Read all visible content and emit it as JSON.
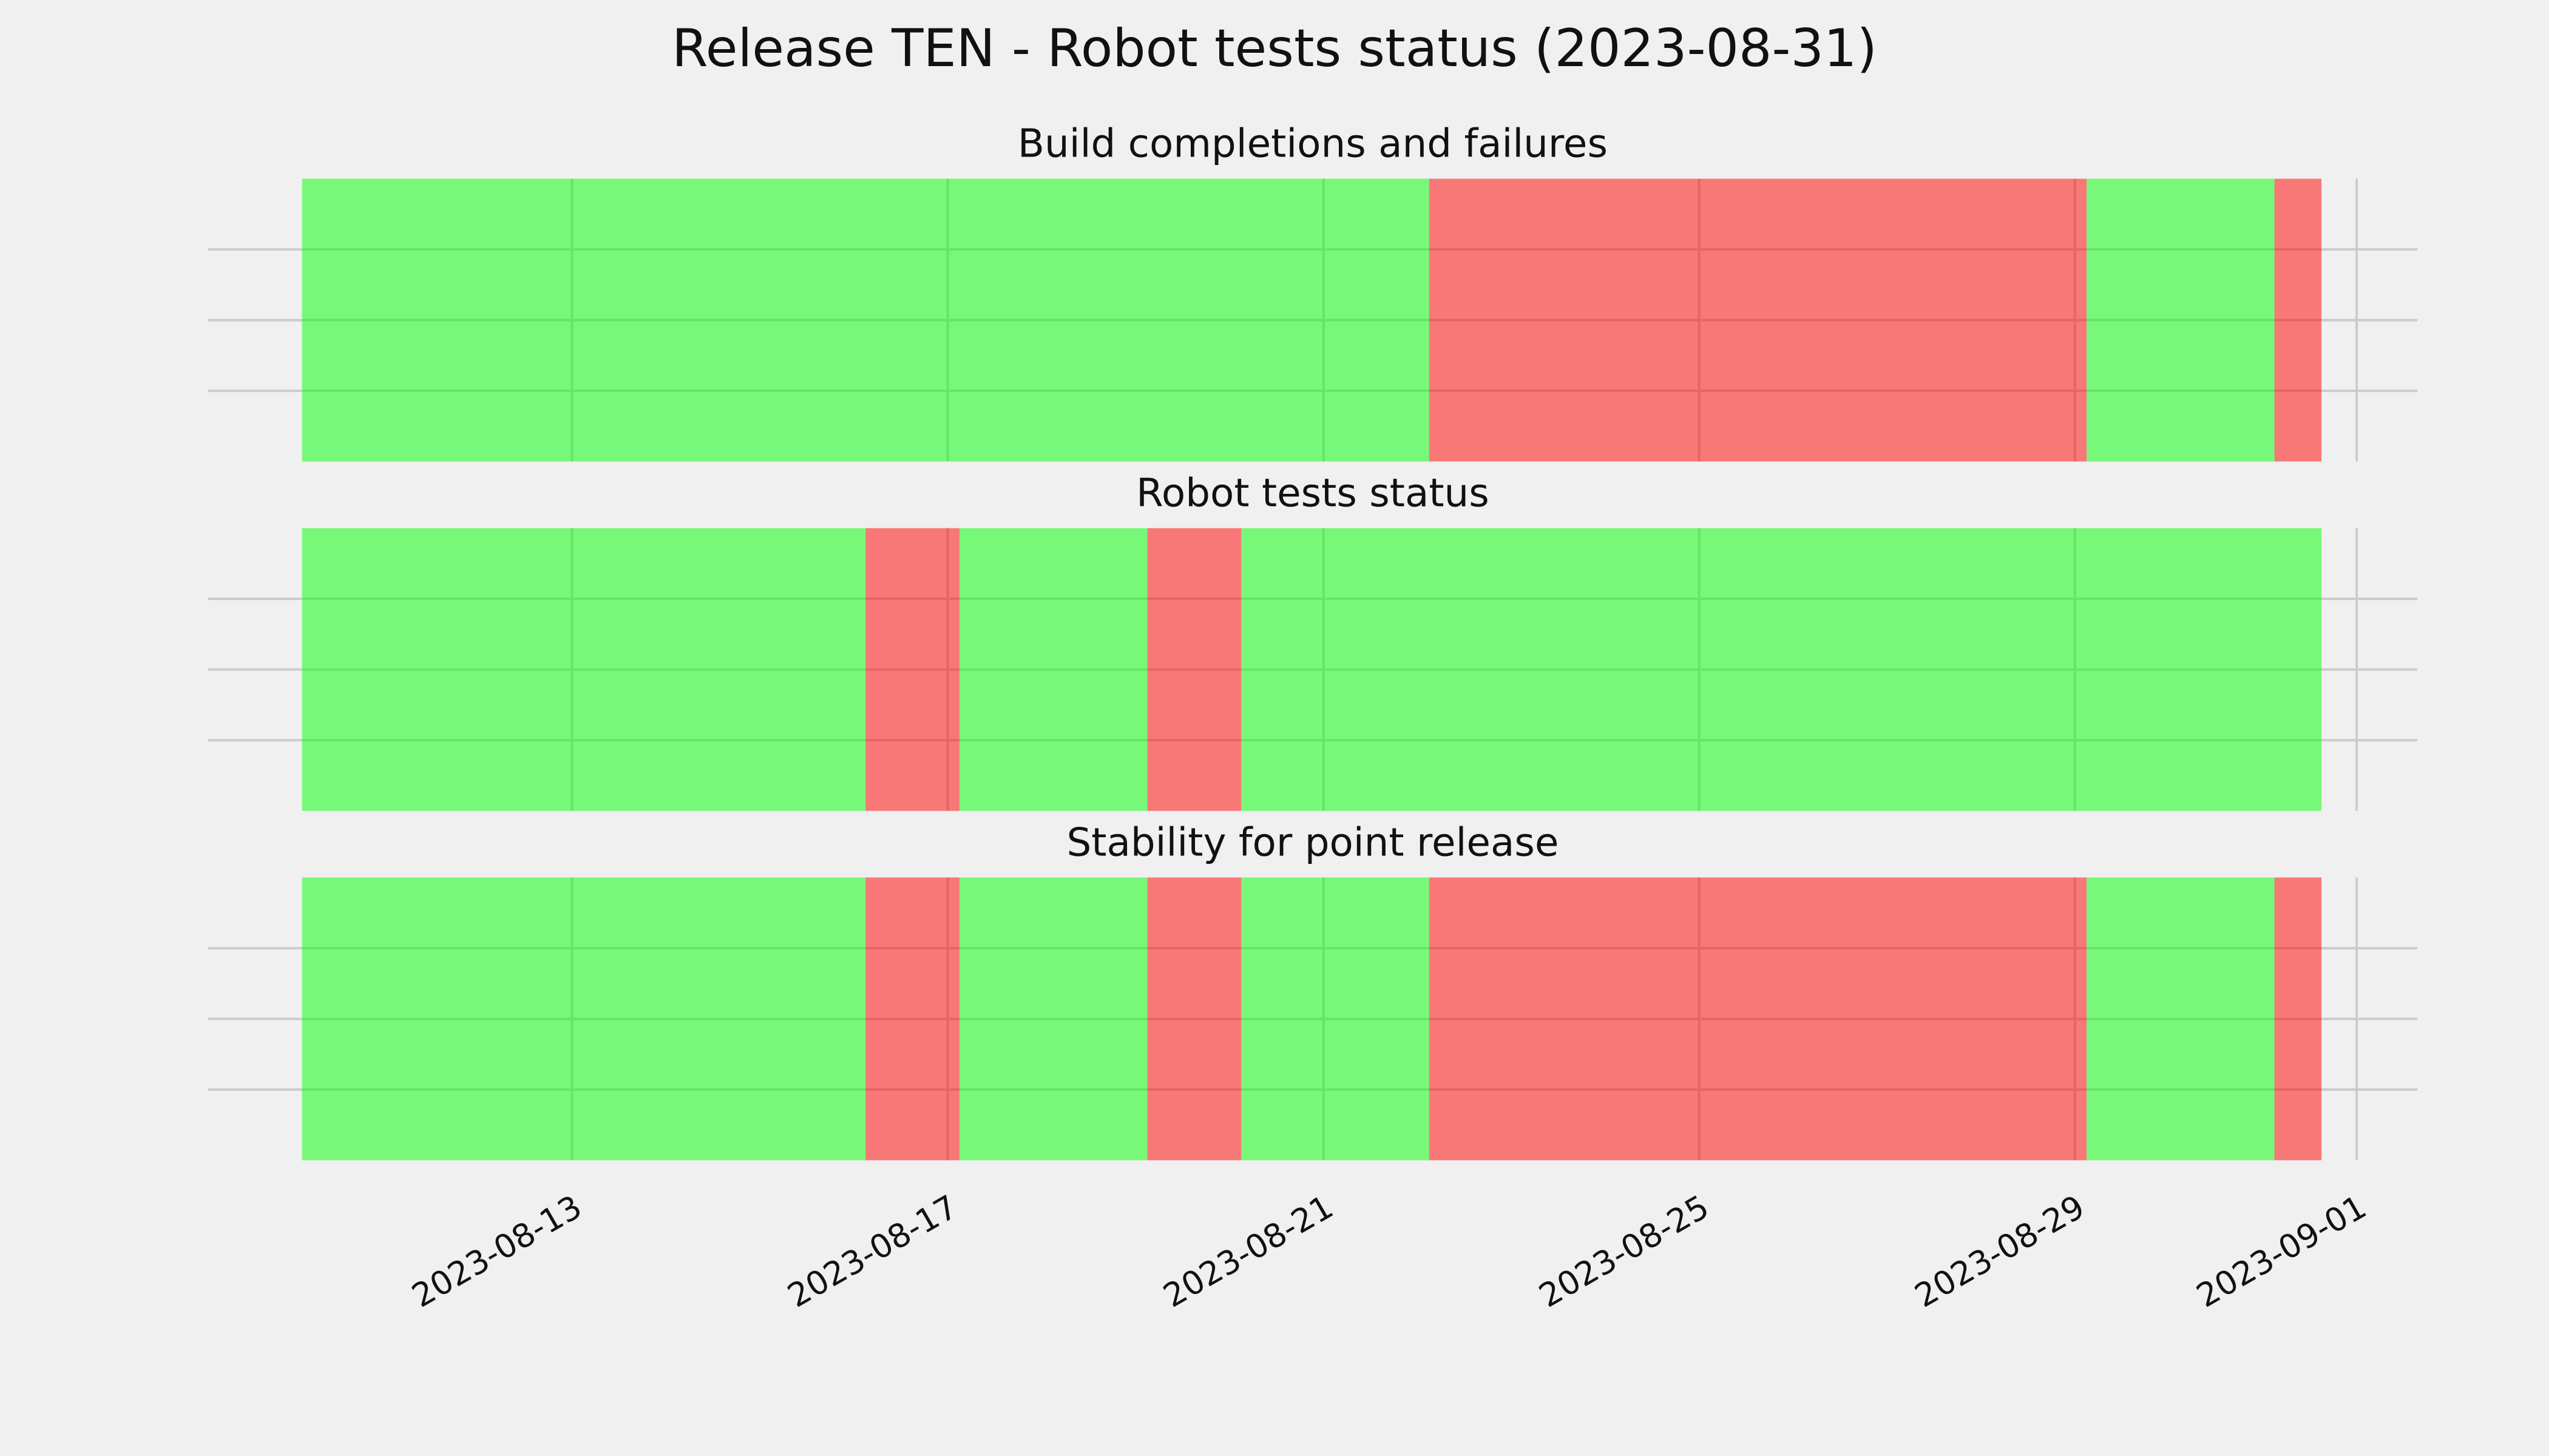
{
  "title": "Release TEN - Robot tests status (2023-08-31)",
  "chart_data": [
    {
      "type": "timeline",
      "title": "Build completions and failures",
      "xlim": [
        "2023-08-09T03:00",
        "2023-09-01T15:30"
      ],
      "xticks": [
        "2023-08-13",
        "2023-08-17",
        "2023-08-21",
        "2023-08-25",
        "2023-08-29",
        "2023-09-01"
      ],
      "ylim": [
        0,
        1
      ],
      "yticks": [
        0.25,
        0.5,
        0.75
      ],
      "grid": true,
      "alpha": 0.5,
      "segments": [
        {
          "start": "2023-08-10T03:00",
          "end": "2023-08-22T03:00",
          "color": "#00ff00"
        },
        {
          "start": "2023-08-22T03:00",
          "end": "2023-08-29T03:00",
          "color": "#ff0000"
        },
        {
          "start": "2023-08-29T03:00",
          "end": "2023-08-31T03:00",
          "color": "#00ff00"
        },
        {
          "start": "2023-08-31T03:00",
          "end": "2023-08-31T15:00",
          "color": "#ff0000"
        }
      ]
    },
    {
      "type": "timeline",
      "title": "Robot tests status",
      "xlim": [
        "2023-08-09T03:00",
        "2023-09-01T15:30"
      ],
      "xticks": [
        "2023-08-13",
        "2023-08-17",
        "2023-08-21",
        "2023-08-25",
        "2023-08-29",
        "2023-09-01"
      ],
      "ylim": [
        0,
        1
      ],
      "yticks": [
        0.25,
        0.5,
        0.75
      ],
      "grid": true,
      "alpha": 0.5,
      "segments": [
        {
          "start": "2023-08-10T03:00",
          "end": "2023-08-16T03:00",
          "color": "#00ff00"
        },
        {
          "start": "2023-08-16T03:00",
          "end": "2023-08-17T03:00",
          "color": "#ff0000"
        },
        {
          "start": "2023-08-17T03:00",
          "end": "2023-08-19T03:00",
          "color": "#00ff00"
        },
        {
          "start": "2023-08-19T03:00",
          "end": "2023-08-20T03:00",
          "color": "#ff0000"
        },
        {
          "start": "2023-08-20T03:00",
          "end": "2023-08-31T15:00",
          "color": "#00ff00"
        }
      ]
    },
    {
      "type": "timeline",
      "title": "Stability for point release",
      "xlim": [
        "2023-08-09T03:00",
        "2023-09-01T15:30"
      ],
      "xticks": [
        "2023-08-13",
        "2023-08-17",
        "2023-08-21",
        "2023-08-25",
        "2023-08-29",
        "2023-09-01"
      ],
      "ylim": [
        0,
        1
      ],
      "yticks": [
        0.25,
        0.5,
        0.75
      ],
      "grid": true,
      "alpha": 0.5,
      "segments": [
        {
          "start": "2023-08-10T03:00",
          "end": "2023-08-16T03:00",
          "color": "#00ff00"
        },
        {
          "start": "2023-08-16T03:00",
          "end": "2023-08-17T03:00",
          "color": "#ff0000"
        },
        {
          "start": "2023-08-17T03:00",
          "end": "2023-08-19T03:00",
          "color": "#00ff00"
        },
        {
          "start": "2023-08-19T03:00",
          "end": "2023-08-20T03:00",
          "color": "#ff0000"
        },
        {
          "start": "2023-08-20T03:00",
          "end": "2023-08-22T03:00",
          "color": "#00ff00"
        },
        {
          "start": "2023-08-22T03:00",
          "end": "2023-08-29T03:00",
          "color": "#ff0000"
        },
        {
          "start": "2023-08-29T03:00",
          "end": "2023-08-31T03:00",
          "color": "#00ff00"
        },
        {
          "start": "2023-08-31T03:00",
          "end": "2023-08-31T15:00",
          "color": "#ff0000"
        }
      ]
    }
  ]
}
